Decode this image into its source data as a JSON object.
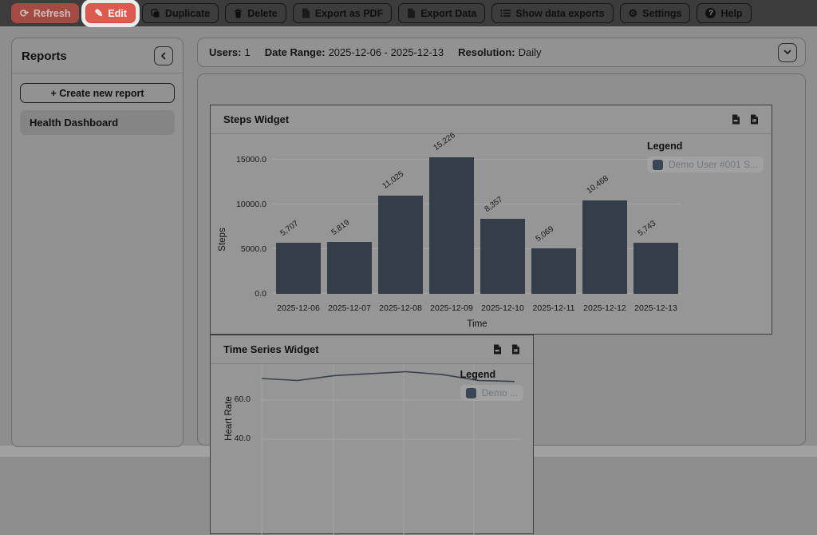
{
  "toolbar": {
    "buttons": [
      {
        "name": "refresh-button",
        "label": "Refresh",
        "icon": "refresh-icon",
        "variant": "danger-dim",
        "highlighted": false
      },
      {
        "name": "edit-button",
        "label": "Edit",
        "icon": "edit-icon",
        "variant": "danger",
        "highlighted": true
      },
      {
        "name": "duplicate-button",
        "label": "Duplicate",
        "icon": "duplicate-icon",
        "variant": "",
        "highlighted": false
      },
      {
        "name": "delete-button",
        "label": "Delete",
        "icon": "delete-icon",
        "variant": "",
        "highlighted": false
      },
      {
        "name": "export-pdf-button",
        "label": "Export as PDF",
        "icon": "file-icon",
        "variant": "",
        "highlighted": false
      },
      {
        "name": "export-data-button",
        "label": "Export Data",
        "icon": "file-icon",
        "variant": "",
        "highlighted": false
      },
      {
        "name": "show-data-exports-button",
        "label": "Show data exports",
        "icon": "list-icon",
        "variant": "",
        "highlighted": false
      },
      {
        "name": "settings-button",
        "label": "Settings",
        "icon": "gear-icon",
        "variant": "",
        "highlighted": false
      },
      {
        "name": "help-button",
        "label": "Help",
        "icon": "help-icon",
        "variant": "",
        "highlighted": false
      }
    ]
  },
  "sidebar": {
    "title": "Reports",
    "collapse_icon": "chevron-left-icon",
    "create_button_label": "+ Create new report",
    "reports": [
      {
        "label": "Health Dashboard",
        "selected": true
      }
    ]
  },
  "report_header": {
    "fields": [
      {
        "label": "Users:",
        "value": "1"
      },
      {
        "label": "Date Range:",
        "value": "2025-12-06 - 2025-12-13"
      },
      {
        "label": "Resolution:",
        "value": "Daily"
      }
    ],
    "expand_icon": "chevron-down-icon"
  },
  "widgets": [
    {
      "title": "Steps Widget",
      "header_icons": [
        "file-pdf-icon",
        "file-image-icon"
      ],
      "legend_title": "Legend",
      "legend_items": [
        "Demo User #001 S..."
      ]
    },
    {
      "title": "Time Series Widget",
      "header_icons": [
        "file-pdf-icon",
        "file-image-icon"
      ],
      "legend_title": "Legend",
      "legend_items": [
        "Demo ..."
      ]
    }
  ],
  "chart_data": [
    {
      "type": "bar",
      "title": "Steps Widget",
      "categories": [
        "2025-12-06",
        "2025-12-07",
        "2025-12-08",
        "2025-12-09",
        "2025-12-10",
        "2025-12-11",
        "2025-12-12",
        "2025-12-13"
      ],
      "values": [
        5707,
        5819,
        11025,
        15226,
        8357,
        5069,
        10468,
        5743
      ],
      "xlabel": "Time",
      "ylabel": "Steps",
      "yticks": [
        0,
        5000,
        10000,
        15000
      ],
      "ylim": [
        0,
        16500
      ],
      "grid": true,
      "legend_position": "right",
      "legend": [
        "Demo User #001 S..."
      ]
    },
    {
      "type": "line",
      "title": "Time Series Widget",
      "ylabel": "Heart Rate",
      "visible_yticks": [
        60,
        40
      ],
      "values": [
        71,
        70,
        72.5,
        73.5,
        74.5,
        73,
        70,
        69.5
      ],
      "ylim_visible": [
        40,
        75
      ],
      "grid": true,
      "legend_position": "right",
      "legend": [
        "Demo ..."
      ]
    }
  ],
  "colors": {
    "accent_red": "#dc5a4e",
    "refresh_red_dim": "#a34a43",
    "bar": "#333e4a",
    "line": "#3a4049",
    "legend_swatch": "#3a4653",
    "toolbar_bg": "#3c3c3c"
  }
}
